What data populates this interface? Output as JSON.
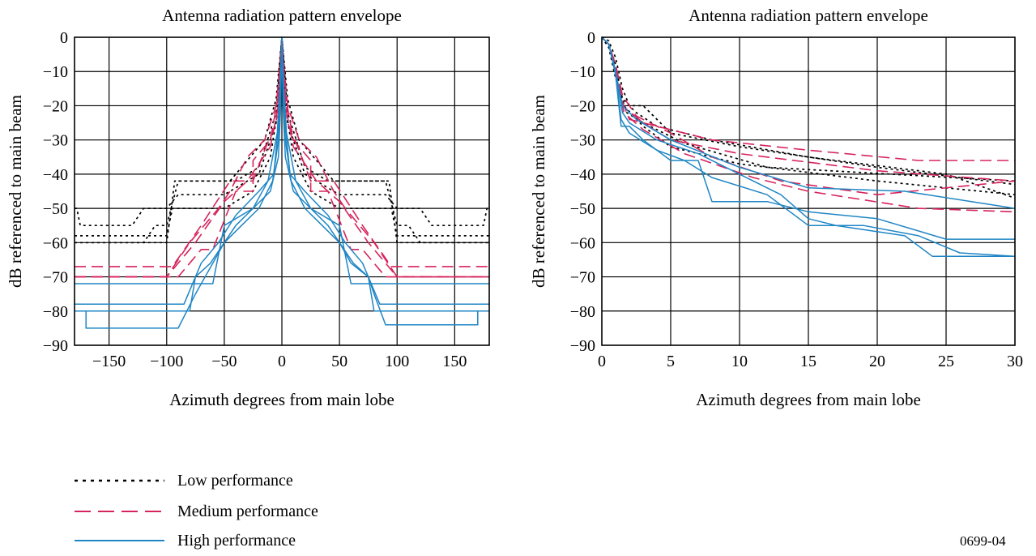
{
  "legend": [
    {
      "label": "Low performance",
      "series": "low"
    },
    {
      "label": "Medium performance",
      "series": "medium"
    },
    {
      "label": "High performance",
      "series": "high"
    }
  ],
  "figure_id": "0699-04",
  "colors": {
    "low": "#000000",
    "medium": "#d6245c",
    "high": "#1f86c4",
    "grid": "#000000"
  },
  "chart_data": [
    {
      "type": "line",
      "title": "Antenna radiation pattern envelope",
      "xlabel": "Azimuth degrees from main lobe",
      "ylabel": "dB referenced to main beam",
      "xlim": [
        -180,
        180
      ],
      "ylim": [
        -90,
        0
      ],
      "xticks": [
        -150,
        -100,
        -50,
        0,
        50,
        100,
        150
      ],
      "xgrid": [
        -150,
        -100,
        -50,
        0,
        50,
        100,
        150
      ],
      "yticks": [
        0,
        -10,
        -20,
        -30,
        -40,
        -50,
        -60,
        -70,
        -80,
        -90
      ],
      "grid": true,
      "series": [
        {
          "group": "low",
          "x": [
            -180,
            -100,
            -95,
            -80,
            -50,
            -25,
            -10,
            -3,
            0,
            3,
            10,
            25,
            50,
            80,
            95,
            100,
            180
          ],
          "y": [
            -58,
            -58,
            -50,
            -50,
            -50,
            -45,
            -35,
            -20,
            0,
            -20,
            -35,
            -45,
            -50,
            -50,
            -50,
            -58,
            -58
          ]
        },
        {
          "group": "low",
          "x": [
            -180,
            -100,
            -93,
            -45,
            -30,
            -15,
            -5,
            0,
            5,
            15,
            30,
            45,
            93,
            100,
            180
          ],
          "y": [
            -60,
            -60,
            -42,
            -42,
            -36,
            -30,
            -18,
            0,
            -18,
            -30,
            -36,
            -42,
            -42,
            -60,
            -60
          ]
        },
        {
          "group": "low",
          "x": [
            -180,
            -178,
            -175,
            -130,
            -120,
            -100,
            -90,
            -50,
            -20,
            -5,
            0,
            5,
            20,
            50,
            90,
            100,
            120,
            130,
            175,
            178,
            180
          ],
          "y": [
            -50,
            -50,
            -55,
            -55,
            -50,
            -50,
            -46,
            -46,
            -40,
            -25,
            0,
            -25,
            -40,
            -46,
            -46,
            -50,
            -50,
            -55,
            -55,
            -50,
            -50
          ]
        },
        {
          "group": "low",
          "x": [
            -180,
            -120,
            -110,
            -100,
            -90,
            -40,
            -20,
            -5,
            0,
            5,
            20,
            40,
            90,
            100,
            110,
            120,
            180
          ],
          "y": [
            -60,
            -60,
            -55,
            -55,
            -42,
            -42,
            -38,
            -22,
            0,
            -22,
            -38,
            -42,
            -42,
            -55,
            -55,
            -60,
            -60
          ]
        },
        {
          "group": "medium",
          "x": [
            -180,
            -100,
            -80,
            -55,
            -45,
            -30,
            -15,
            -5,
            -2,
            0,
            2,
            5,
            15,
            30,
            45,
            55,
            80,
            100,
            180
          ],
          "y": [
            -70,
            -70,
            -60,
            -50,
            -45,
            -35,
            -30,
            -20,
            -10,
            0,
            -10,
            -20,
            -30,
            -35,
            -45,
            -50,
            -60,
            -70,
            -70
          ]
        },
        {
          "group": "medium",
          "x": [
            -180,
            -95,
            -70,
            -45,
            -25,
            -15,
            -5,
            -1,
            0,
            1,
            5,
            15,
            25,
            45,
            70,
            95,
            180
          ],
          "y": [
            -67,
            -67,
            -55,
            -42,
            -42,
            -33,
            -25,
            -8,
            0,
            -8,
            -25,
            -33,
            -42,
            -42,
            -55,
            -67,
            -67
          ]
        },
        {
          "group": "medium",
          "x": [
            -180,
            -90,
            -70,
            -60,
            -40,
            -25,
            -25,
            -10,
            -2,
            0,
            2,
            10,
            25,
            25,
            40,
            60,
            70,
            90,
            180
          ],
          "y": [
            -70,
            -70,
            -62,
            -62,
            -45,
            -45,
            -36,
            -30,
            -15,
            0,
            -15,
            -30,
            -36,
            -45,
            -45,
            -62,
            -62,
            -70,
            -70
          ]
        },
        {
          "group": "medium",
          "x": [
            -180,
            -100,
            -75,
            -50,
            -30,
            -10,
            -3,
            0,
            3,
            10,
            30,
            50,
            75,
            100,
            180
          ],
          "y": [
            -70,
            -70,
            -60,
            -48,
            -42,
            -32,
            -20,
            0,
            -20,
            -32,
            -42,
            -48,
            -60,
            -70,
            -70
          ]
        },
        {
          "group": "high",
          "x": [
            -180,
            -80,
            -75,
            -62,
            -50,
            -40,
            -25,
            -10,
            -3,
            -1,
            0,
            1,
            3,
            10,
            25,
            40,
            50,
            62,
            75,
            80,
            180
          ],
          "y": [
            -80,
            -80,
            -70,
            -66,
            -60,
            -55,
            -50,
            -45,
            -35,
            -20,
            0,
            -20,
            -35,
            -45,
            -50,
            -55,
            -60,
            -66,
            -70,
            -80,
            -80
          ]
        },
        {
          "group": "high",
          "x": [
            -180,
            -170,
            -170,
            -90,
            -75,
            -60,
            -50,
            -35,
            -20,
            -8,
            -3,
            -1,
            0,
            1,
            3,
            8,
            20,
            35,
            50,
            60,
            75,
            80,
            90,
            170,
            170,
            180
          ],
          "y": [
            -80,
            -80,
            -85,
            -85,
            -75,
            -66,
            -60,
            -55,
            -50,
            -42,
            -30,
            -15,
            0,
            -15,
            -30,
            -42,
            -50,
            -55,
            -60,
            -66,
            -70,
            -75,
            -84,
            -84,
            -80,
            -80
          ]
        },
        {
          "group": "high",
          "x": [
            -180,
            -60,
            -50,
            -25,
            -12,
            -4,
            -1,
            0,
            1,
            4,
            12,
            25,
            50,
            60,
            180
          ],
          "y": [
            -72,
            -72,
            -55,
            -50,
            -42,
            -28,
            -10,
            0,
            -10,
            -28,
            -42,
            -50,
            -55,
            -72,
            -72
          ]
        },
        {
          "group": "high",
          "x": [
            -180,
            -85,
            -70,
            -55,
            -40,
            -20,
            -7,
            -2,
            0,
            2,
            7,
            20,
            40,
            55,
            70,
            85,
            180
          ],
          "y": [
            -78,
            -78,
            -66,
            -60,
            -52,
            -45,
            -40,
            -22,
            0,
            -22,
            -40,
            -45,
            -52,
            -60,
            -66,
            -78,
            -78
          ]
        }
      ]
    },
    {
      "type": "line",
      "title": "Antenna radiation pattern envelope",
      "xlabel": "Azimuth degrees from main lobe",
      "ylabel": "dB referenced to main beam",
      "xlim": [
        0,
        30
      ],
      "ylim": [
        -90,
        0
      ],
      "xticks": [
        0,
        5,
        10,
        15,
        20,
        25,
        30
      ],
      "xgrid": [
        5,
        10,
        15,
        20,
        25
      ],
      "yticks": [
        0,
        -10,
        -20,
        -30,
        -40,
        -50,
        -60,
        -70,
        -80,
        -90
      ],
      "grid": true,
      "series": [
        {
          "group": "low",
          "x": [
            0,
            0.5,
            1,
            1.5,
            2,
            3,
            5,
            10,
            20,
            30
          ],
          "y": [
            0,
            -1,
            -6,
            -15,
            -20,
            -20,
            -28,
            -32,
            -38,
            -43
          ]
        },
        {
          "group": "low",
          "x": [
            0,
            0.5,
            1,
            1.5,
            2.5,
            4,
            8,
            15,
            25,
            30
          ],
          "y": [
            0,
            -2,
            -8,
            -18,
            -22,
            -26,
            -30,
            -35,
            -40,
            -47
          ]
        },
        {
          "group": "low",
          "x": [
            0,
            0.5,
            1,
            1.6,
            3,
            5,
            10,
            20,
            30
          ],
          "y": [
            0,
            -2,
            -10,
            -20,
            -26,
            -32,
            -37,
            -42,
            -46
          ]
        },
        {
          "group": "low",
          "x": [
            0,
            0.5,
            1,
            1.8,
            3,
            6,
            12,
            30
          ],
          "y": [
            0,
            -3,
            -12,
            -22,
            -25,
            -31,
            -38,
            -42
          ]
        },
        {
          "group": "medium",
          "x": [
            0,
            0.5,
            1,
            1.5,
            2,
            4,
            8,
            15,
            23,
            30
          ],
          "y": [
            0,
            -2,
            -9,
            -19,
            -24,
            -26,
            -30,
            -33,
            -36,
            -36
          ]
        },
        {
          "group": "medium",
          "x": [
            0,
            0.5,
            1,
            1.5,
            3,
            5,
            10,
            20,
            30
          ],
          "y": [
            0,
            -2,
            -10,
            -20,
            -25,
            -30,
            -34,
            -39,
            -42
          ]
        },
        {
          "group": "medium",
          "x": [
            0,
            0.5,
            1,
            1.6,
            3,
            6,
            11,
            15,
            23,
            30
          ],
          "y": [
            0,
            -2,
            -10,
            -22,
            -27,
            -34,
            -41,
            -45,
            -50,
            -51
          ]
        },
        {
          "group": "medium",
          "x": [
            0,
            0.5,
            1,
            1.5,
            2.5,
            5,
            8,
            13,
            20,
            30
          ],
          "y": [
            0,
            -2,
            -8,
            -17,
            -23,
            -28,
            -35,
            -42,
            -46,
            -42
          ]
        },
        {
          "group": "high",
          "x": [
            0,
            0.5,
            1,
            1.4,
            2,
            4,
            6,
            8,
            12,
            15,
            19,
            23,
            26,
            30
          ],
          "y": [
            0,
            -2,
            -10,
            -24,
            -28,
            -33,
            -36,
            -41,
            -46,
            -55,
            -55,
            -58,
            -63,
            -64
          ]
        },
        {
          "group": "high",
          "x": [
            0,
            0.5,
            1,
            1.4,
            2,
            3,
            5,
            7,
            8,
            12,
            15,
            20,
            25,
            30
          ],
          "y": [
            0,
            -2,
            -11,
            -26,
            -26,
            -30,
            -36,
            -36,
            -48,
            -48,
            -51,
            -53,
            -59,
            -59
          ]
        },
        {
          "group": "high",
          "x": [
            0,
            0.5,
            1,
            1.5,
            2,
            4,
            7,
            10,
            13,
            15,
            17,
            22,
            24,
            30
          ],
          "y": [
            0,
            -2,
            -10,
            -22,
            -25,
            -30,
            -34,
            -40,
            -46,
            -53,
            -55,
            -58,
            -64,
            -64
          ]
        },
        {
          "group": "high",
          "x": [
            0,
            0.5,
            1,
            1.5,
            2.5,
            5,
            10,
            15,
            22,
            30
          ],
          "y": [
            0,
            -2,
            -10,
            -20,
            -24,
            -30,
            -38,
            -44,
            -45,
            -50
          ]
        }
      ]
    }
  ]
}
